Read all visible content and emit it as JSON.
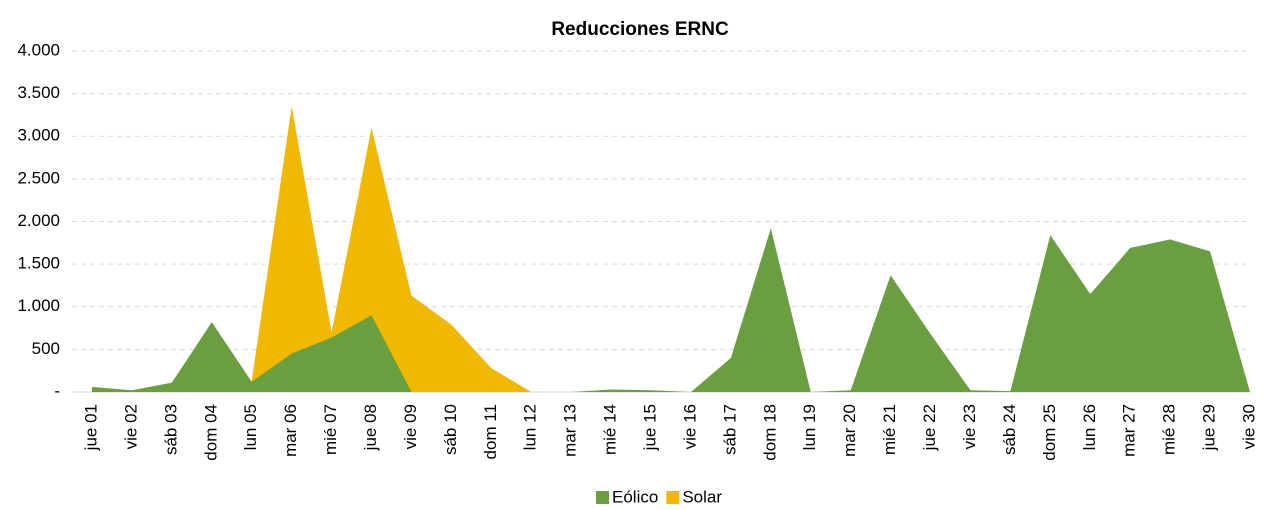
{
  "chart_data": {
    "type": "area",
    "title": "Reducciones ERNC",
    "categories": [
      "jue 01",
      "vie 02",
      "sáb 03",
      "dom 04",
      "lun 05",
      "mar 06",
      "mié 07",
      "jue 08",
      "vie 09",
      "sáb 10",
      "dom 11",
      "lun 12",
      "mar 13",
      "mié 14",
      "jue 15",
      "vie 16",
      "sáb 17",
      "dom 18",
      "lun 19",
      "mar 20",
      "mié 21",
      "jue 22",
      "vie 23",
      "sáb 24",
      "dom 25",
      "lun 26",
      "mar 27",
      "mié 28",
      "jue 29",
      "vie 30"
    ],
    "series": [
      {
        "name": "Solar",
        "color": "#f0b800",
        "values": [
          0,
          0,
          0,
          0,
          130,
          3350,
          700,
          3100,
          1130,
          790,
          280,
          0,
          0,
          0,
          0,
          0,
          0,
          0,
          0,
          0,
          0,
          0,
          0,
          0,
          0,
          0,
          0,
          0,
          0,
          0
        ]
      },
      {
        "name": "Eólico",
        "color": "#6a9f40",
        "values": [
          60,
          20,
          110,
          820,
          120,
          450,
          640,
          900,
          0,
          0,
          0,
          0,
          0,
          30,
          20,
          0,
          400,
          1920,
          0,
          20,
          1370,
          680,
          20,
          10,
          1840,
          1150,
          1690,
          1790,
          1650,
          0
        ]
      }
    ],
    "legend_order": [
      "Eólico",
      "Solar"
    ],
    "ylim": [
      0,
      4000
    ],
    "yticks": [
      {
        "value": 0,
        "label": "-"
      },
      500,
      {
        "value": 1000,
        "label": "1.000"
      },
      {
        "value": 1500,
        "label": "1.500"
      },
      {
        "value": 2000,
        "label": "2.000"
      },
      {
        "value": 2500,
        "label": "2.500"
      },
      {
        "value": 3000,
        "label": "3.000"
      },
      {
        "value": 3500,
        "label": "3.500"
      },
      {
        "value": 4000,
        "label": "4.000"
      }
    ],
    "grid": true,
    "legend": "bottom"
  }
}
